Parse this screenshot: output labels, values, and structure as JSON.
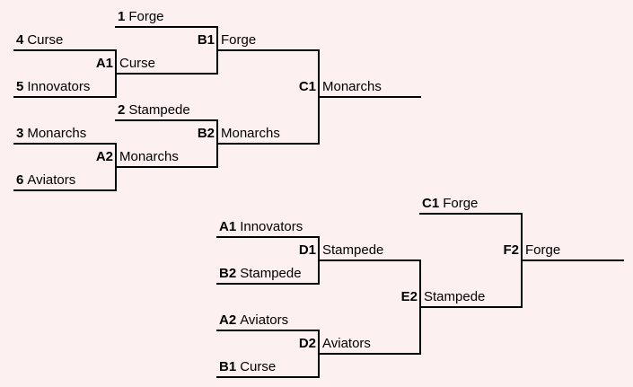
{
  "entries": [
    {
      "id": "seed-1",
      "seed": "1",
      "team": "Forge"
    },
    {
      "id": "seed-4",
      "seed": "4",
      "team": "Curse"
    },
    {
      "id": "seed-5",
      "seed": "5",
      "team": "Innovators"
    },
    {
      "id": "seed-2",
      "seed": "2",
      "team": "Stampede"
    },
    {
      "id": "seed-3",
      "seed": "3",
      "team": "Monarchs"
    },
    {
      "id": "seed-6",
      "seed": "6",
      "team": "Aviators"
    },
    {
      "id": "a1-loser",
      "seed": "A1",
      "team": "Innovators"
    },
    {
      "id": "b2-loser",
      "seed": "B2",
      "team": "Stampede"
    },
    {
      "id": "a2-loser",
      "seed": "A2",
      "team": "Aviators"
    },
    {
      "id": "b1-loser",
      "seed": "B1",
      "team": "Curse"
    },
    {
      "id": "c1-entry",
      "seed": "C1",
      "team": "Forge"
    }
  ],
  "matches": [
    {
      "id": "A1",
      "code": "A1",
      "winner": "Curse"
    },
    {
      "id": "A2",
      "code": "A2",
      "winner": "Monarchs"
    },
    {
      "id": "B1",
      "code": "B1",
      "winner": "Forge"
    },
    {
      "id": "B2",
      "code": "B2",
      "winner": "Monarchs"
    },
    {
      "id": "C1",
      "code": "C1",
      "winner": "Monarchs"
    },
    {
      "id": "D1",
      "code": "D1",
      "winner": "Stampede"
    },
    {
      "id": "D2",
      "code": "D2",
      "winner": "Aviators"
    },
    {
      "id": "E2",
      "code": "E2",
      "winner": "Stampede"
    },
    {
      "id": "F2",
      "code": "F2",
      "winner": "Forge"
    }
  ]
}
